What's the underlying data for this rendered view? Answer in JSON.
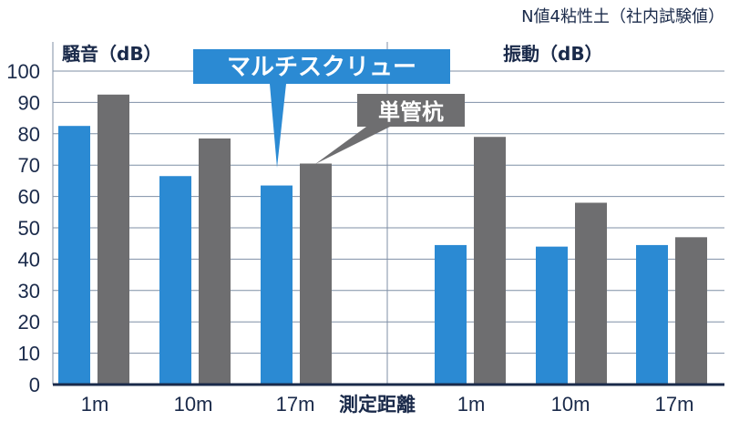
{
  "note": "N値4粘性土（社内試験値）",
  "chart_data": {
    "type": "bar",
    "ylim": [
      0,
      100
    ],
    "yticks": [
      0,
      10,
      20,
      30,
      40,
      50,
      60,
      70,
      80,
      90,
      100
    ],
    "xlabel": "測定距離",
    "grid": true,
    "panels": [
      {
        "title": "騒音（dB）",
        "categories": [
          "1m",
          "10m",
          "17m"
        ],
        "series": [
          {
            "name": "マルチスクリュー",
            "color": "#2b8ad3",
            "values": [
              82.5,
              66.5,
              63.5
            ]
          },
          {
            "name": "単管杭",
            "color": "#6e6e70",
            "values": [
              92.5,
              78.5,
              70.5
            ]
          }
        ]
      },
      {
        "title": "振動（dB）",
        "categories": [
          "1m",
          "10m",
          "17m"
        ],
        "series": [
          {
            "name": "マルチスクリュー",
            "color": "#2b8ad3",
            "values": [
              44.5,
              44,
              44.5
            ]
          },
          {
            "name": "単管杭",
            "color": "#6e6e70",
            "values": [
              79,
              58,
              47
            ]
          }
        ]
      }
    ]
  }
}
